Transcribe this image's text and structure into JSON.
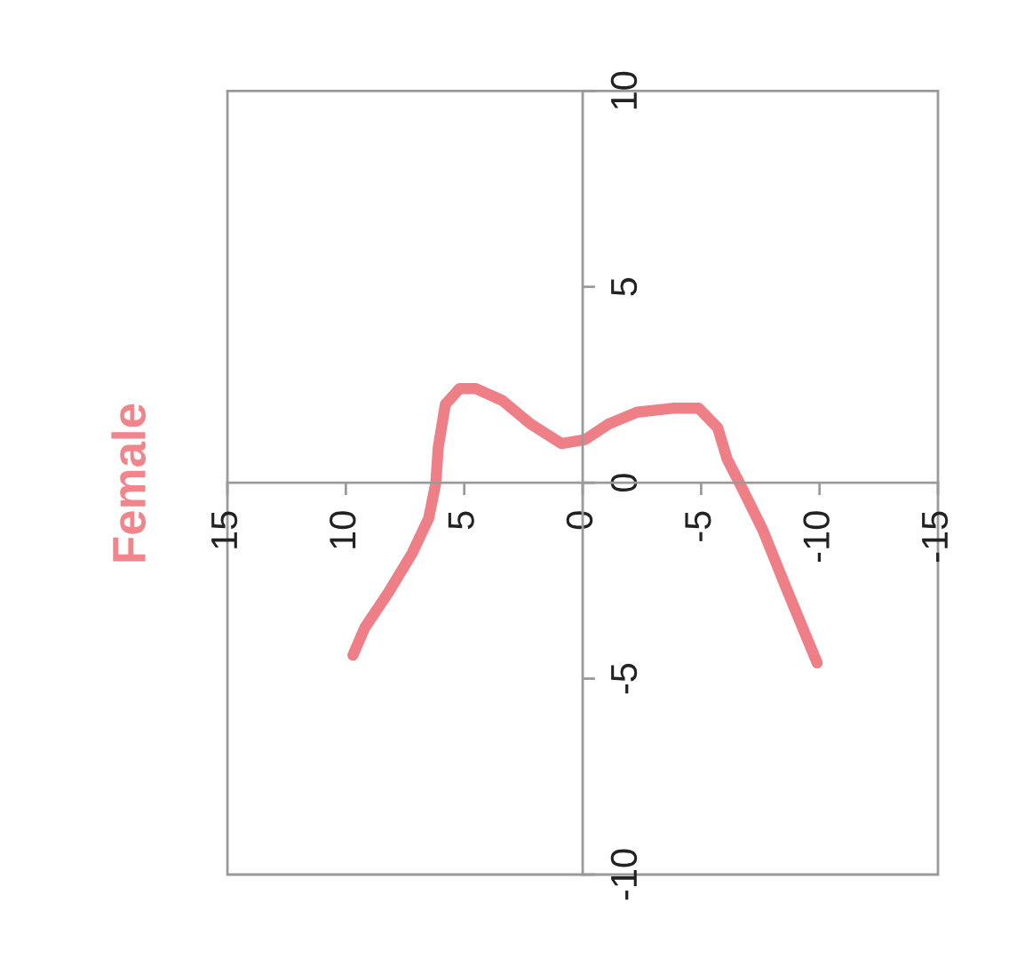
{
  "chart_data": {
    "type": "line",
    "title": "Female",
    "x": [
      9.7,
      9.2,
      8.2,
      7.2,
      6.5,
      6.2,
      6.1,
      5.8,
      5.2,
      4.5,
      3.4,
      2.2,
      0.9,
      -0.1,
      -1.1,
      -2.3,
      -3.8,
      -4.9,
      -5.7,
      -6.1,
      -6.7,
      -7.6,
      -8.6,
      -9.9
    ],
    "series": [
      {
        "color": "#ef7f87",
        "values": [
          -4.4,
          -3.7,
          -2.8,
          -1.8,
          -0.9,
          0.0,
          0.9,
          2.0,
          2.4,
          2.4,
          2.1,
          1.5,
          1.0,
          1.1,
          1.5,
          1.8,
          1.9,
          1.9,
          1.4,
          0.6,
          -0.1,
          -1.2,
          -2.7,
          -4.6
        ]
      }
    ],
    "xlim": [
      15,
      -15
    ],
    "xticks": [
      15,
      10,
      5,
      0,
      -5,
      -10,
      -15
    ],
    "ylim": [
      -10,
      10
    ],
    "yticks": [
      -10,
      -5,
      0,
      5,
      10
    ],
    "grid": false,
    "legend": false,
    "marker": "none",
    "line_style": "solid"
  }
}
